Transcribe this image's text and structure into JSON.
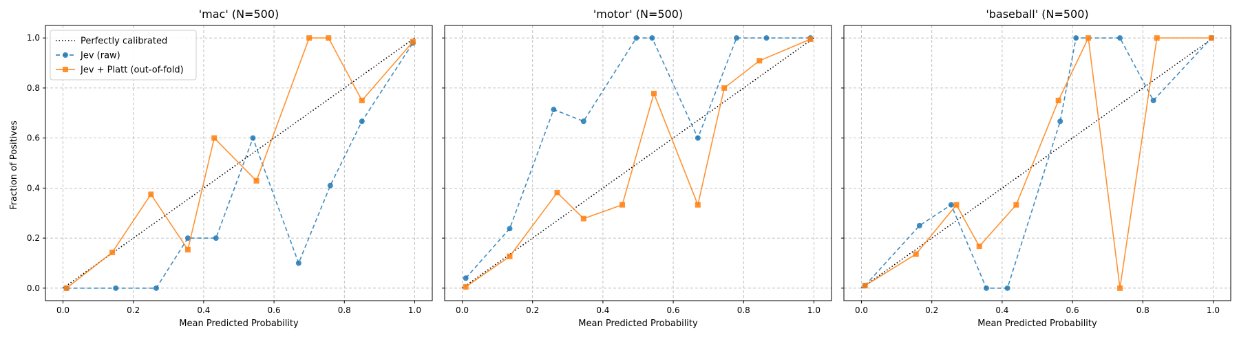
{
  "figure": {
    "ylabel": "Fraction of Positives",
    "xlabel": "Mean Predicted Probability"
  },
  "legend": {
    "placement": "top-left",
    "entries": [
      {
        "label": "Perfectly calibrated",
        "color": "#000000",
        "style": "dotted",
        "marker": "none"
      },
      {
        "label": "Jev (raw)",
        "color": "#1f77b4",
        "style": "dashed",
        "marker": "circle"
      },
      {
        "label": "Jev + Platt (out-of-fold)",
        "color": "#ff7f0e",
        "style": "solid",
        "marker": "square"
      }
    ]
  },
  "chart_data": [
    {
      "type": "line",
      "title": "'mac' (N=500)",
      "xlabel": "Mean Predicted Probability",
      "ylabel": "Fraction of Positives",
      "xlim": [
        -0.05,
        1.05
      ],
      "ylim": [
        -0.05,
        1.05
      ],
      "xticks": [
        "0.0",
        "0.2",
        "0.4",
        "0.6",
        "0.8",
        "1.0"
      ],
      "yticks": [
        "0.0",
        "0.2",
        "0.4",
        "0.6",
        "0.8",
        "1.0"
      ],
      "grid": true,
      "series": [
        {
          "name": "Perfectly calibrated",
          "x": [
            0,
            1
          ],
          "y": [
            0,
            1
          ]
        },
        {
          "name": "Jev (raw)",
          "x": [
            0.01,
            0.15,
            0.265,
            0.355,
            0.435,
            0.54,
            0.67,
            0.76,
            0.85,
            0.995
          ],
          "y": [
            0.0,
            0.0,
            0.0,
            0.2,
            0.2,
            0.6,
            0.1,
            0.41,
            0.667,
            0.98
          ]
        },
        {
          "name": "Jev + Platt (out-of-fold)",
          "x": [
            0.01,
            0.14,
            0.25,
            0.355,
            0.43,
            0.55,
            0.7,
            0.755,
            0.85,
            0.995
          ],
          "y": [
            0.0,
            0.143,
            0.375,
            0.154,
            0.6,
            0.429,
            1.0,
            1.0,
            0.75,
            0.985
          ]
        }
      ]
    },
    {
      "type": "line",
      "title": "'motor' (N=500)",
      "xlabel": "Mean Predicted Probability",
      "ylabel": "",
      "xlim": [
        -0.05,
        1.05
      ],
      "ylim": [
        -0.05,
        1.05
      ],
      "xticks": [
        "0.0",
        "0.2",
        "0.4",
        "0.6",
        "0.8",
        "1.0"
      ],
      "yticks": [],
      "grid": true,
      "series": [
        {
          "name": "Perfectly calibrated",
          "x": [
            0,
            1
          ],
          "y": [
            0,
            1
          ]
        },
        {
          "name": "Jev (raw)",
          "x": [
            0.01,
            0.135,
            0.26,
            0.345,
            0.495,
            0.54,
            0.67,
            0.78,
            0.865,
            0.99
          ],
          "y": [
            0.04,
            0.238,
            0.714,
            0.667,
            1.0,
            1.0,
            0.6,
            1.0,
            1.0,
            1.0
          ]
        },
        {
          "name": "Jev + Platt (out-of-fold)",
          "x": [
            0.01,
            0.135,
            0.27,
            0.345,
            0.455,
            0.545,
            0.67,
            0.745,
            0.845,
            0.99
          ],
          "y": [
            0.005,
            0.127,
            0.382,
            0.278,
            0.333,
            0.778,
            0.333,
            0.8,
            0.909,
            0.995
          ]
        }
      ]
    },
    {
      "type": "line",
      "title": "'baseball' (N=500)",
      "xlabel": "Mean Predicted Probability",
      "ylabel": "",
      "xlim": [
        -0.05,
        1.05
      ],
      "ylim": [
        -0.05,
        1.05
      ],
      "xticks": [
        "0.0",
        "0.2",
        "0.4",
        "0.6",
        "0.8",
        "1.0"
      ],
      "yticks": [],
      "grid": true,
      "series": [
        {
          "name": "Perfectly calibrated",
          "x": [
            0,
            1
          ],
          "y": [
            0,
            1
          ]
        },
        {
          "name": "Jev (raw)",
          "x": [
            0.01,
            0.165,
            0.255,
            0.355,
            0.415,
            0.565,
            0.61,
            0.735,
            0.83,
            0.995
          ],
          "y": [
            0.01,
            0.25,
            0.333,
            0.0,
            0.0,
            0.667,
            1.0,
            1.0,
            0.75,
            1.0
          ]
        },
        {
          "name": "Jev + Platt (out-of-fold)",
          "x": [
            0.01,
            0.155,
            0.27,
            0.335,
            0.44,
            0.56,
            0.645,
            0.735,
            0.84,
            0.995
          ],
          "y": [
            0.01,
            0.136,
            0.333,
            0.167,
            0.333,
            0.75,
            1.0,
            0.0,
            1.0,
            1.0
          ]
        }
      ]
    }
  ]
}
